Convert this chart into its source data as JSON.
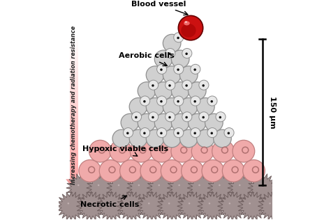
{
  "bg_color": "#ffffff",
  "blood_vessel_color": "#cc1111",
  "blood_vessel_highlight": "#ff5555",
  "aerobic_cell_color": "#d0d0d0",
  "aerobic_cell_edge": "#909090",
  "aerobic_nucleus_color": "#111111",
  "aerobic_blob_color": "#e8e8e8",
  "hypoxic_cell_color": "#f0aaaa",
  "hypoxic_cell_edge": "#c08080",
  "hypoxic_nucleus_color": "#b07070",
  "necrotic_cell_color": "#a09090",
  "necrotic_cell_edge": "#706060",
  "labels": {
    "blood_vessel": "Blood vessel",
    "aerobic": "Aerobic cells",
    "hypoxic": "Hypoxic viable cells",
    "necrotic": "Necrotic cells",
    "arrow_label": "Increasing chemotherapy and radiation resistance",
    "scale": "150 μm"
  },
  "figsize": [
    4.74,
    3.16
  ],
  "dpi": 100
}
